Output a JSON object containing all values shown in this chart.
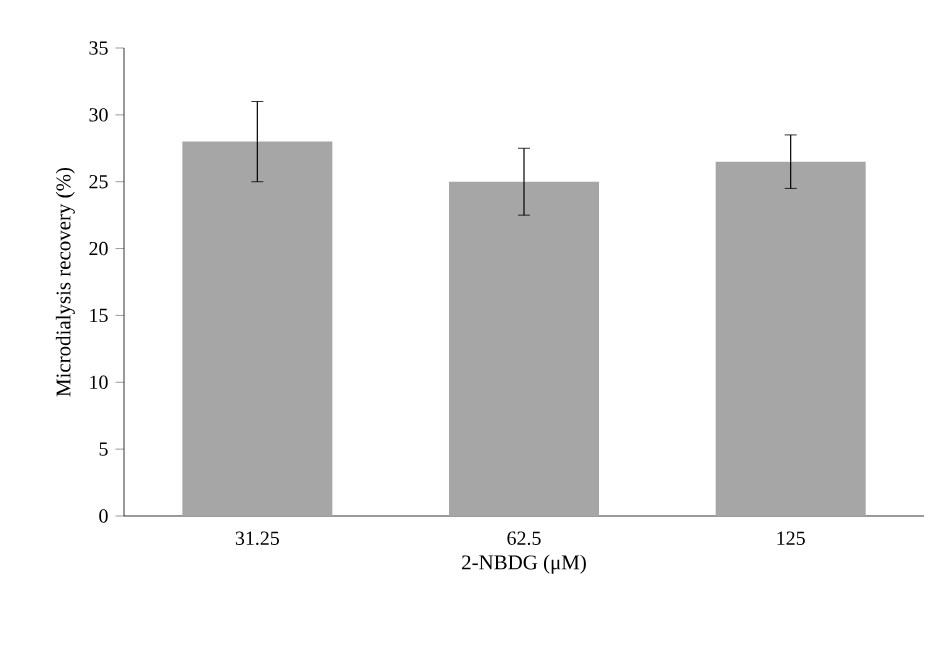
{
  "chart_data": {
    "type": "bar",
    "xlabel": "2-NBDG (μM)",
    "ylabel": "Microdialysis recovery (%)",
    "categories": [
      "31.25",
      "62.5",
      "125"
    ],
    "values": [
      28,
      25,
      26.5
    ],
    "errors": [
      3,
      2.5,
      2
    ],
    "color": "#a6a6a6",
    "ylim": [
      0,
      35
    ],
    "yticks": [
      0,
      5,
      10,
      15,
      20,
      25,
      30,
      35
    ]
  }
}
